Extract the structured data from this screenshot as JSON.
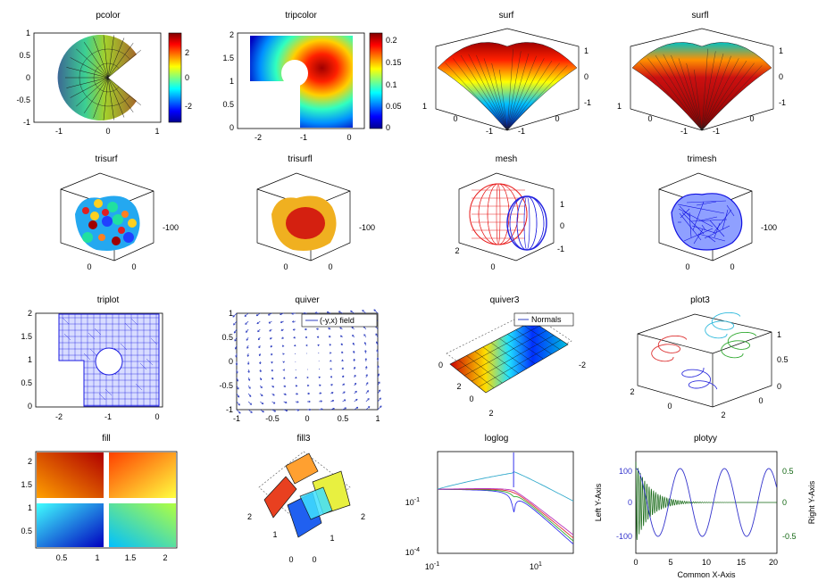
{
  "chart_data": [
    {
      "type": "heatmap",
      "title": "pcolor",
      "xticks": [
        "-1",
        "0",
        "1"
      ],
      "yticks": [
        "1",
        "0.5",
        "0",
        "-0.5",
        "-1"
      ],
      "colorbar": {
        "ticks": [
          "2",
          "0",
          "-2"
        ],
        "range": [
          -3,
          3
        ]
      },
      "shape": "pac-man disk, radial/ring cells",
      "xlim": [
        -1.2,
        1.2
      ],
      "ylim": [
        -1,
        1
      ]
    },
    {
      "type": "heatmap",
      "title": "tripcolor",
      "xticks": [
        "-2",
        "-1",
        "0"
      ],
      "yticks": [
        "2",
        "1.5",
        "1",
        "0.5",
        "0"
      ],
      "colorbar": {
        "ticks": [
          "0.2",
          "0.15",
          "0.1",
          "0.05",
          "0"
        ],
        "range": [
          0,
          0.22
        ]
      },
      "shape": "L-shaped domain with circular hole",
      "xlim": [
        -2.2,
        0.2
      ],
      "ylim": [
        0,
        2
      ]
    },
    {
      "type": "surface",
      "title": "surf",
      "ticks_right": [
        "1",
        "0",
        "-1"
      ],
      "ticks_left": [
        "1"
      ],
      "ticks_bottom": [
        "0",
        "-1",
        "-1",
        "0"
      ]
    },
    {
      "type": "surface",
      "title": "surfl",
      "ticks_right": [
        "1",
        "0",
        "-1"
      ],
      "ticks_left": [
        "1"
      ],
      "ticks_bottom": [
        "0",
        "-1",
        "-1",
        "0"
      ]
    },
    {
      "type": "surface",
      "title": "trisurf",
      "ticks_right": [
        "-100"
      ],
      "ticks_bottom": [
        "0",
        "0"
      ]
    },
    {
      "type": "surface",
      "title": "trisurfl",
      "ticks_right": [
        "-100"
      ],
      "ticks_bottom": [
        "0",
        "0"
      ]
    },
    {
      "type": "surface",
      "title": "mesh",
      "ticks_right": [
        "1",
        "0",
        "-1"
      ],
      "ticks_bottom": [
        "2",
        "0"
      ]
    },
    {
      "type": "surface",
      "title": "trimesh",
      "ticks_right": [
        "-100"
      ],
      "ticks_bottom": [
        "0",
        "0"
      ]
    },
    {
      "type": "scatter",
      "title": "triplot",
      "xticks": [
        "-2",
        "-1",
        "0"
      ],
      "yticks": [
        "2",
        "1.5",
        "1",
        "0.5",
        "0"
      ],
      "xlim": [
        -2.2,
        0.2
      ],
      "ylim": [
        0,
        2
      ]
    },
    {
      "type": "scatter",
      "title": "quiver",
      "xticks": [
        "-1",
        "-0.5",
        "0",
        "0.5",
        "1"
      ],
      "yticks": [
        "1",
        "0.5",
        "0",
        "-0.5",
        "-1"
      ],
      "legend": [
        "(-y,x) field"
      ],
      "xlim": [
        -1,
        1
      ],
      "ylim": [
        -1,
        1
      ]
    },
    {
      "type": "surface",
      "title": "quiver3",
      "legend": [
        "Normals"
      ],
      "ticks_left": [
        "0"
      ],
      "ticks_right": [
        "-2"
      ],
      "ticks_bottom": [
        "2",
        "0",
        "2"
      ]
    },
    {
      "type": "line",
      "title": "plot3",
      "ticks_right": [
        "1",
        "0.5",
        "0"
      ],
      "ticks_bottom": [
        "2",
        "0",
        "2",
        "0"
      ],
      "series": [
        {
          "color": "#dd3333"
        },
        {
          "color": "#3333dd"
        },
        {
          "color": "#33aa33"
        },
        {
          "color": "#33bbdd"
        }
      ]
    },
    {
      "type": "heatmap",
      "title": "fill",
      "xticks": [
        "0.5",
        "1",
        "1.5",
        "2"
      ],
      "yticks": [
        "2",
        "1.5",
        "1",
        "0.5"
      ],
      "xlim": [
        0.1,
        2.3
      ],
      "ylim": [
        0.1,
        2.3
      ]
    },
    {
      "type": "surface",
      "title": "fill3",
      "ticks_left": [
        "2"
      ],
      "ticks_right": [
        "2"
      ],
      "ticks_bottom": [
        "1",
        "0",
        "1",
        "0"
      ]
    },
    {
      "type": "line",
      "title": "loglog",
      "xticks": [
        "10^-1",
        "10^1"
      ],
      "yticks": [
        "10^-1",
        "10^-4"
      ],
      "xscale": "log",
      "yscale": "log",
      "series": [
        {
          "color": "#3333ee"
        },
        {
          "color": "#33aa33"
        },
        {
          "color": "#dd3333"
        },
        {
          "color": "#bb33bb"
        },
        {
          "color": "#33aacc"
        }
      ]
    },
    {
      "type": "line",
      "title": "plotyy",
      "xlabel": "Common X-Axis",
      "ylabel": "Left Y-Axis",
      "ylabel2": "Right Y-Axis",
      "xticks": [
        "0",
        "5",
        "10",
        "15",
        "20"
      ],
      "yticks_left": [
        "100",
        "0",
        "-100"
      ],
      "yticks_right": [
        "0.5",
        "0",
        "-0.5"
      ],
      "xlim": [
        0,
        20
      ],
      "ylim_left": [
        -150,
        150
      ],
      "ylim_right": [
        -0.75,
        0.75
      ],
      "series": [
        {
          "axis": "left",
          "color": "#3333cc",
          "form": "100*cos(x)"
        },
        {
          "axis": "right",
          "color": "#116611",
          "form": "0.6*exp(-x/2)*cos(20x)"
        }
      ]
    }
  ]
}
